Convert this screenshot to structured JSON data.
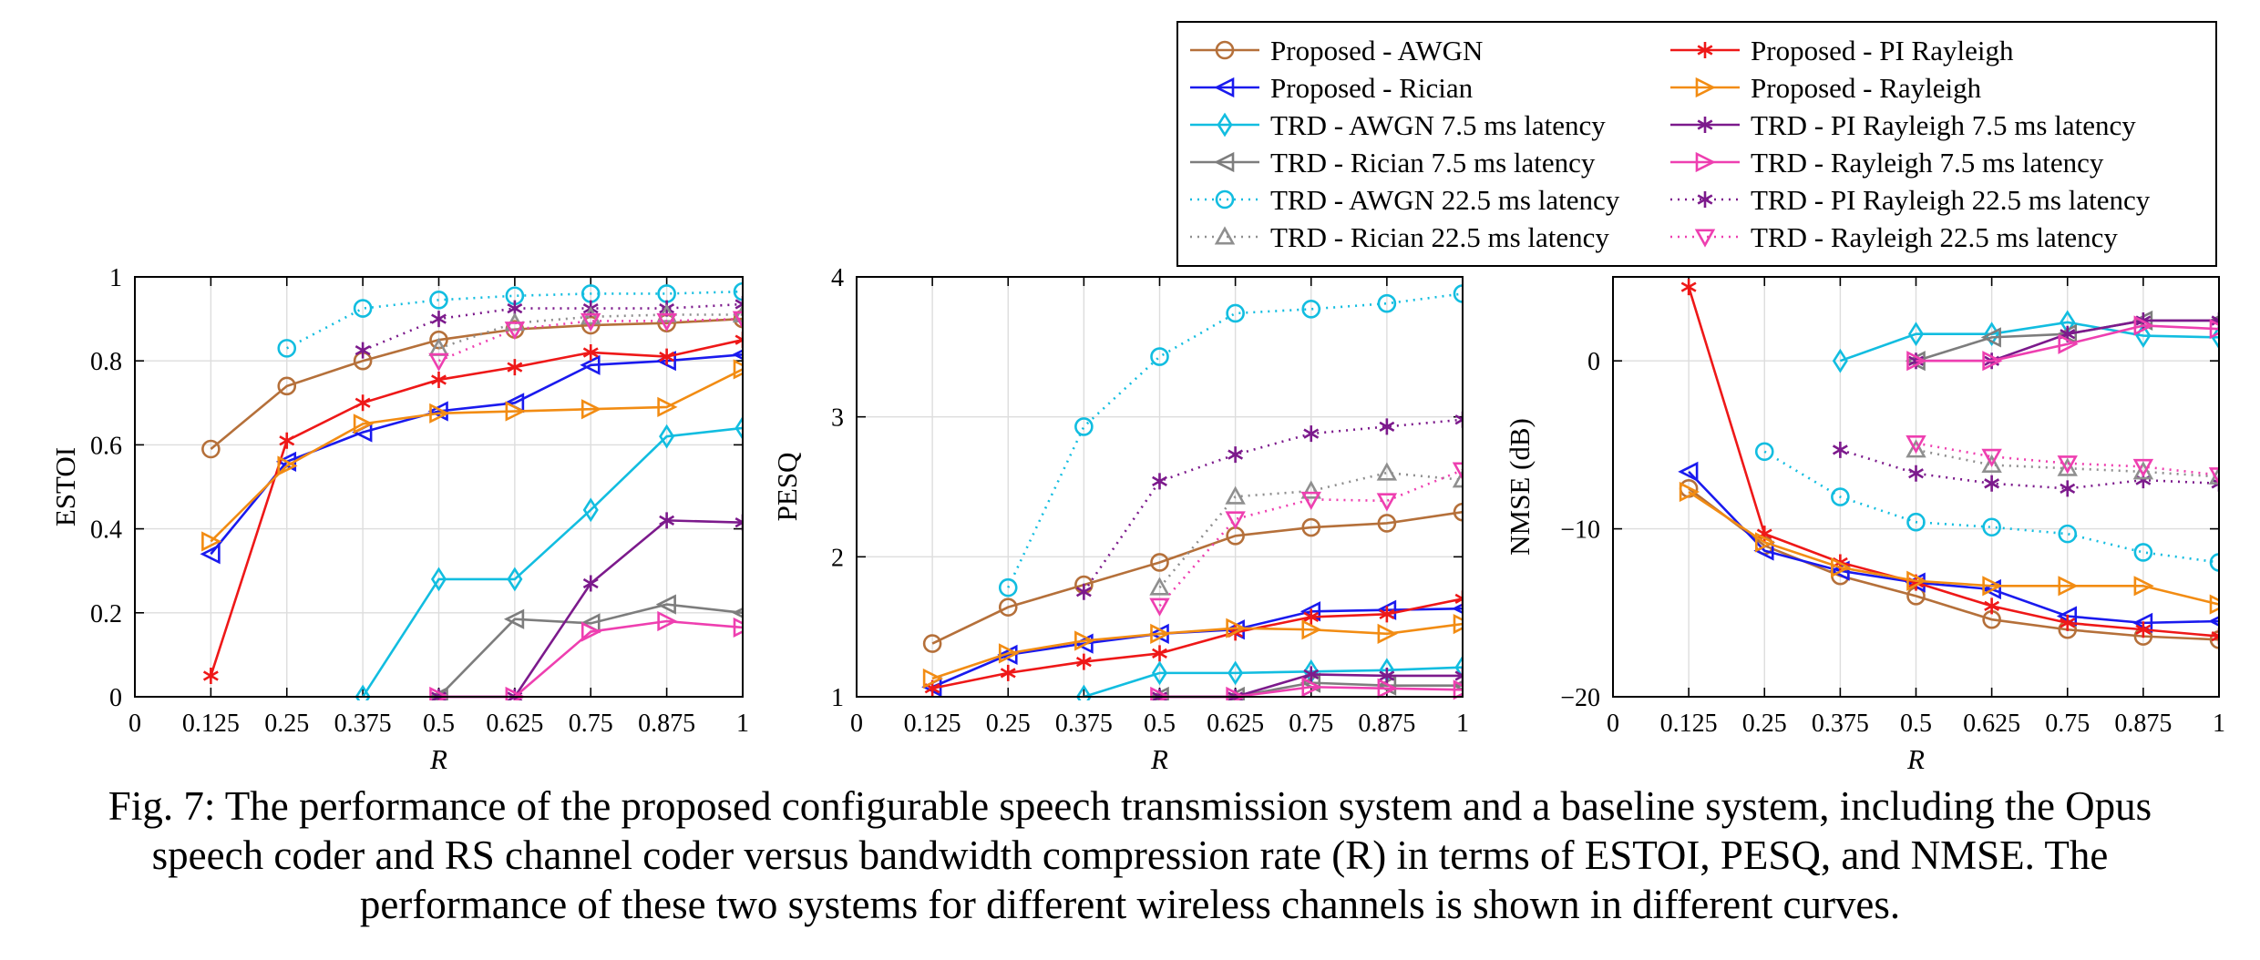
{
  "caption": {
    "line1": "Fig. 7: The performance of the proposed configurable speech transmission system and a baseline system, including the Opus",
    "line2": "speech coder and RS channel coder versus bandwidth compression rate (R) in terms of ESTOI, PESQ, and NMSE. The",
    "line3": "performance of these two systems for different wireless channels is shown in different curves."
  },
  "styles": {
    "prop_awgn": {
      "color": "#b5703a",
      "marker": "circle",
      "dash": false
    },
    "prop_rician": {
      "color": "#1a1aee",
      "marker": "tri-left",
      "dash": false
    },
    "trd_awgn_7": {
      "color": "#12bde0",
      "marker": "diamond",
      "dash": false
    },
    "trd_ric_7": {
      "color": "#7d7d7d",
      "marker": "tri-left",
      "dash": false
    },
    "trd_awgn_22": {
      "color": "#12bde0",
      "marker": "circle",
      "dash": true
    },
    "trd_ric_22": {
      "color": "#8f8f8f",
      "marker": "tri-up",
      "dash": true
    },
    "prop_pi": {
      "color": "#ee1818",
      "marker": "star",
      "dash": false
    },
    "prop_ray": {
      "color": "#f28c13",
      "marker": "tri-right",
      "dash": false
    },
    "trd_pi_7": {
      "color": "#7c1a8c",
      "marker": "star",
      "dash": false
    },
    "trd_ray_7": {
      "color": "#ee3fb0",
      "marker": "tri-right",
      "dash": false
    },
    "trd_pi_22": {
      "color": "#7c1a8c",
      "marker": "star",
      "dash": true
    },
    "trd_ray_22": {
      "color": "#ee3fb0",
      "marker": "tri-down",
      "dash": true
    }
  },
  "legend": [
    {
      "key": "prop_awgn",
      "label": "Proposed - AWGN"
    },
    {
      "key": "prop_pi",
      "label": "Proposed - PI Rayleigh"
    },
    {
      "key": "prop_rician",
      "label": "Proposed - Rician"
    },
    {
      "key": "prop_ray",
      "label": "Proposed - Rayleigh"
    },
    {
      "key": "trd_awgn_7",
      "label": "TRD - AWGN 7.5 ms latency"
    },
    {
      "key": "trd_pi_7",
      "label": "TRD - PI Rayleigh 7.5 ms latency"
    },
    {
      "key": "trd_ric_7",
      "label": "TRD - Rician 7.5 ms latency"
    },
    {
      "key": "trd_ray_7",
      "label": "TRD - Rayleigh 7.5 ms latency"
    },
    {
      "key": "trd_awgn_22",
      "label": "TRD - AWGN 22.5 ms latency"
    },
    {
      "key": "trd_pi_22",
      "label": "TRD - PI Rayleigh 22.5 ms latency"
    },
    {
      "key": "trd_ric_22",
      "label": "TRD - Rician 22.5 ms latency"
    },
    {
      "key": "trd_ray_22",
      "label": "TRD - Rayleigh 22.5 ms latency"
    }
  ],
  "chart_data": [
    {
      "type": "line",
      "xlabel": "R",
      "ylabel": "ESTOI",
      "xlim": [
        0,
        1
      ],
      "ylim": [
        0,
        1
      ],
      "xticks": [
        0,
        0.125,
        0.25,
        0.375,
        0.5,
        0.625,
        0.75,
        0.875,
        1
      ],
      "xtick_labels": [
        "0",
        "0.125",
        "0.25",
        "0.375",
        "0.5",
        "0.625",
        "0.75",
        "0.875",
        "1"
      ],
      "yticks": [
        0,
        0.2,
        0.4,
        0.6,
        0.8,
        1
      ],
      "ytick_labels": [
        "0",
        "0.2",
        "0.4",
        "0.6",
        "0.8",
        "1"
      ],
      "grid": true,
      "series": [
        {
          "key": "prop_awgn",
          "x": [
            0.125,
            0.25,
            0.375,
            0.5,
            0.625,
            0.75,
            0.875,
            1
          ],
          "y": [
            0.59,
            0.74,
            0.8,
            0.85,
            0.875,
            0.885,
            0.89,
            0.9
          ]
        },
        {
          "key": "prop_rician",
          "x": [
            0.125,
            0.25,
            0.375,
            0.5,
            0.625,
            0.75,
            0.875,
            1
          ],
          "y": [
            0.34,
            0.56,
            0.63,
            0.68,
            0.7,
            0.79,
            0.8,
            0.815
          ]
        },
        {
          "key": "prop_pi",
          "x": [
            0.125,
            0.25,
            0.375,
            0.5,
            0.625,
            0.75,
            0.875,
            1
          ],
          "y": [
            0.05,
            0.61,
            0.7,
            0.755,
            0.785,
            0.82,
            0.81,
            0.85
          ]
        },
        {
          "key": "prop_ray",
          "x": [
            0.125,
            0.25,
            0.375,
            0.5,
            0.625,
            0.75,
            0.875,
            1
          ],
          "y": [
            0.37,
            0.55,
            0.65,
            0.675,
            0.68,
            0.685,
            0.69,
            0.78
          ]
        },
        {
          "key": "trd_awgn_7",
          "x": [
            0.375,
            0.5,
            0.625,
            0.75,
            0.875,
            1
          ],
          "y": [
            0,
            0.28,
            0.28,
            0.445,
            0.62,
            0.64
          ]
        },
        {
          "key": "trd_ric_7",
          "x": [
            0.5,
            0.625,
            0.75,
            0.875,
            1
          ],
          "y": [
            0,
            0.185,
            0.175,
            0.22,
            0.2
          ]
        },
        {
          "key": "trd_pi_7",
          "x": [
            0.5,
            0.625,
            0.75,
            0.875,
            1
          ],
          "y": [
            0,
            0,
            0.27,
            0.42,
            0.415
          ]
        },
        {
          "key": "trd_ray_7",
          "x": [
            0.5,
            0.625,
            0.75,
            0.875,
            1
          ],
          "y": [
            0,
            0,
            0.155,
            0.18,
            0.165
          ]
        },
        {
          "key": "trd_awgn_22",
          "x": [
            0.25,
            0.375,
            0.5,
            0.625,
            0.75,
            0.875,
            1
          ],
          "y": [
            0.83,
            0.925,
            0.945,
            0.955,
            0.96,
            0.96,
            0.965
          ]
        },
        {
          "key": "trd_pi_22",
          "x": [
            0.375,
            0.5,
            0.625,
            0.75,
            0.875,
            1
          ],
          "y": [
            0.825,
            0.9,
            0.925,
            0.925,
            0.925,
            0.935
          ]
        },
        {
          "key": "trd_ric_22",
          "x": [
            0.5,
            0.625,
            0.75,
            0.875,
            1
          ],
          "y": [
            0.83,
            0.89,
            0.905,
            0.91,
            0.91
          ]
        },
        {
          "key": "trd_ray_22",
          "x": [
            0.5,
            0.625,
            0.75,
            0.875,
            1
          ],
          "y": [
            0.8,
            0.875,
            0.895,
            0.895,
            0.9
          ]
        }
      ]
    },
    {
      "type": "line",
      "xlabel": "R",
      "ylabel": "PESQ",
      "xlim": [
        0,
        1
      ],
      "ylim": [
        1,
        4
      ],
      "xticks": [
        0,
        0.125,
        0.25,
        0.375,
        0.5,
        0.625,
        0.75,
        0.875,
        1
      ],
      "xtick_labels": [
        "0",
        "0.125",
        "0.25",
        "0.375",
        "0.5",
        "0.625",
        "0.75",
        "0.875",
        "1"
      ],
      "yticks": [
        1,
        2,
        3,
        4
      ],
      "ytick_labels": [
        "1",
        "2",
        "3",
        "4"
      ],
      "grid": true,
      "series": [
        {
          "key": "prop_awgn",
          "x": [
            0.125,
            0.25,
            0.375,
            0.5,
            0.625,
            0.75,
            0.875,
            1
          ],
          "y": [
            1.38,
            1.64,
            1.8,
            1.96,
            2.15,
            2.21,
            2.24,
            2.32
          ]
        },
        {
          "key": "prop_rician",
          "x": [
            0.125,
            0.25,
            0.375,
            0.5,
            0.625,
            0.75,
            0.875,
            1
          ],
          "y": [
            1.07,
            1.3,
            1.38,
            1.45,
            1.48,
            1.61,
            1.62,
            1.63
          ]
        },
        {
          "key": "prop_pi",
          "x": [
            0.125,
            0.25,
            0.375,
            0.5,
            0.625,
            0.75,
            0.875,
            1
          ],
          "y": [
            1.06,
            1.17,
            1.25,
            1.31,
            1.46,
            1.57,
            1.59,
            1.7
          ]
        },
        {
          "key": "prop_ray",
          "x": [
            0.125,
            0.25,
            0.375,
            0.5,
            0.625,
            0.75,
            0.875,
            1
          ],
          "y": [
            1.13,
            1.31,
            1.4,
            1.45,
            1.49,
            1.48,
            1.45,
            1.52
          ]
        },
        {
          "key": "trd_awgn_7",
          "x": [
            0.375,
            0.5,
            0.625,
            0.75,
            0.875,
            1
          ],
          "y": [
            1.0,
            1.17,
            1.17,
            1.18,
            1.19,
            1.21
          ]
        },
        {
          "key": "trd_ric_7",
          "x": [
            0.5,
            0.625,
            0.75,
            0.875,
            1
          ],
          "y": [
            1.0,
            1.0,
            1.1,
            1.08,
            1.08
          ]
        },
        {
          "key": "trd_pi_7",
          "x": [
            0.5,
            0.625,
            0.75,
            0.875,
            1
          ],
          "y": [
            1.0,
            1.0,
            1.16,
            1.15,
            1.15
          ]
        },
        {
          "key": "trd_ray_7",
          "x": [
            0.5,
            0.625,
            0.75,
            0.875,
            1
          ],
          "y": [
            1.0,
            1.0,
            1.07,
            1.06,
            1.05
          ]
        },
        {
          "key": "trd_awgn_22",
          "x": [
            0.25,
            0.375,
            0.5,
            0.625,
            0.75,
            0.875,
            1
          ],
          "y": [
            1.78,
            2.93,
            3.43,
            3.74,
            3.77,
            3.81,
            3.88
          ]
        },
        {
          "key": "trd_pi_22",
          "x": [
            0.375,
            0.5,
            0.625,
            0.75,
            0.875,
            1
          ],
          "y": [
            1.75,
            2.54,
            2.73,
            2.88,
            2.93,
            2.98
          ]
        },
        {
          "key": "trd_ric_22",
          "x": [
            0.5,
            0.625,
            0.75,
            0.875,
            1
          ],
          "y": [
            1.78,
            2.43,
            2.47,
            2.6,
            2.55
          ]
        },
        {
          "key": "trd_ray_22",
          "x": [
            0.5,
            0.625,
            0.75,
            0.875,
            1
          ],
          "y": [
            1.65,
            2.27,
            2.41,
            2.4,
            2.62
          ]
        }
      ]
    },
    {
      "type": "line",
      "xlabel": "R",
      "ylabel": "NMSE (dB)",
      "xlim": [
        0,
        1
      ],
      "ylim": [
        -20,
        5
      ],
      "xticks": [
        0,
        0.125,
        0.25,
        0.375,
        0.5,
        0.625,
        0.75,
        0.875,
        1
      ],
      "xtick_labels": [
        "0",
        "0.125",
        "0.25",
        "0.375",
        "0.5",
        "0.625",
        "0.75",
        "0.875",
        "1"
      ],
      "yticks": [
        -20,
        -10,
        0
      ],
      "ytick_labels": [
        "−20",
        "−10",
        "0"
      ],
      "grid": true,
      "series": [
        {
          "key": "prop_awgn",
          "x": [
            0.125,
            0.25,
            0.375,
            0.5,
            0.625,
            0.75,
            0.875,
            1
          ],
          "y": [
            -7.6,
            -11.0,
            -12.8,
            -14.0,
            -15.4,
            -16.0,
            -16.4,
            -16.6
          ]
        },
        {
          "key": "prop_rician",
          "x": [
            0.125,
            0.25,
            0.375,
            0.5,
            0.625,
            0.75,
            0.875,
            1
          ],
          "y": [
            -6.6,
            -11.3,
            -12.5,
            -13.2,
            -13.6,
            -15.2,
            -15.6,
            -15.5
          ]
        },
        {
          "key": "prop_pi",
          "x": [
            0.125,
            0.25,
            0.375,
            0.5,
            0.625,
            0.75,
            0.875,
            1
          ],
          "y": [
            4.4,
            -10.3,
            -12.0,
            -13.2,
            -14.6,
            -15.6,
            -16.0,
            -16.4
          ]
        },
        {
          "key": "prop_ray",
          "x": [
            0.125,
            0.25,
            0.375,
            0.5,
            0.625,
            0.75,
            0.875,
            1
          ],
          "y": [
            -7.8,
            -10.8,
            -12.3,
            -13.1,
            -13.4,
            -13.4,
            -13.4,
            -14.5
          ]
        },
        {
          "key": "trd_awgn_7",
          "x": [
            0.375,
            0.5,
            0.625,
            0.75,
            0.875,
            1
          ],
          "y": [
            0,
            1.6,
            1.6,
            2.3,
            1.5,
            1.4
          ]
        },
        {
          "key": "trd_ric_7",
          "x": [
            0.5,
            0.625,
            0.75,
            0.875,
            1
          ],
          "y": [
            0,
            1.4,
            1.6,
            2.4,
            2.4
          ]
        },
        {
          "key": "trd_pi_7",
          "x": [
            0.5,
            0.625,
            0.75,
            0.875,
            1
          ],
          "y": [
            0,
            0,
            1.6,
            2.4,
            2.4
          ]
        },
        {
          "key": "trd_ray_7",
          "x": [
            0.5,
            0.625,
            0.75,
            0.875,
            1
          ],
          "y": [
            0,
            0,
            1.0,
            2.1,
            1.9
          ]
        },
        {
          "key": "trd_awgn_22",
          "x": [
            0.25,
            0.375,
            0.5,
            0.625,
            0.75,
            0.875,
            1
          ],
          "y": [
            -5.4,
            -8.1,
            -9.6,
            -9.9,
            -10.3,
            -11.4,
            -12.0
          ]
        },
        {
          "key": "trd_pi_22",
          "x": [
            0.375,
            0.5,
            0.625,
            0.75,
            0.875,
            1
          ],
          "y": [
            -5.3,
            -6.7,
            -7.3,
            -7.6,
            -7.1,
            -7.3
          ]
        },
        {
          "key": "trd_ric_22",
          "x": [
            0.5,
            0.625,
            0.75,
            0.875,
            1
          ],
          "y": [
            -5.3,
            -6.2,
            -6.4,
            -6.6,
            -6.9
          ]
        },
        {
          "key": "trd_ray_22",
          "x": [
            0.5,
            0.625,
            0.75,
            0.875,
            1
          ],
          "y": [
            -4.9,
            -5.7,
            -6.1,
            -6.3,
            -6.8
          ]
        }
      ]
    }
  ]
}
